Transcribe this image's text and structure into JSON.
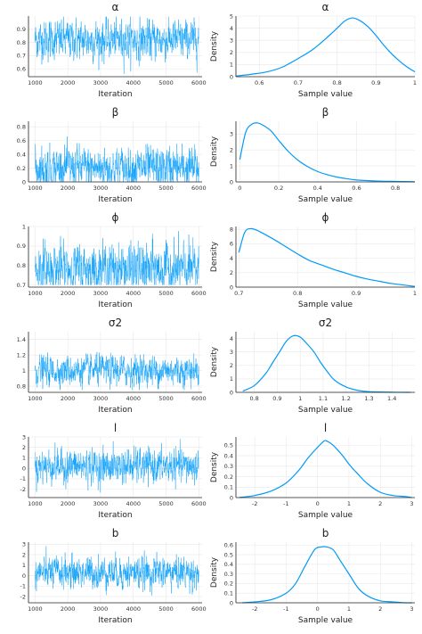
{
  "colors": {
    "series": "#009af9",
    "axis": "#222222",
    "grid": "#e8e8e8"
  },
  "chart_data": [
    {
      "param": "α",
      "trace": {
        "type": "line",
        "title": "α",
        "xlabel": "Iteration",
        "ylabel": "",
        "xlim": [
          800,
          6100
        ],
        "ylim": [
          0.54,
          1.0
        ],
        "xticks": [
          1000,
          2000,
          3000,
          4000,
          5000,
          6000
        ],
        "yticks": [
          0.6,
          0.7,
          0.8,
          0.9
        ],
        "mean": 0.82,
        "spread": 0.07,
        "min": 0.56,
        "max": 0.995
      },
      "density": {
        "type": "line",
        "title": "α",
        "xlabel": "Sample value",
        "ylabel": "Density",
        "xlim": [
          0.54,
          1.0
        ],
        "ylim": [
          0,
          5
        ],
        "xticks": [
          0.6,
          0.7,
          0.8,
          0.9,
          1.0
        ],
        "yticks": [
          0,
          1,
          2,
          3,
          4,
          5
        ],
        "x": [
          0.54,
          0.58,
          0.62,
          0.66,
          0.7,
          0.74,
          0.78,
          0.8,
          0.82,
          0.84,
          0.86,
          0.88,
          0.9,
          0.92,
          0.94,
          0.96,
          0.98,
          1.0
        ],
        "y": [
          0.05,
          0.2,
          0.4,
          0.8,
          1.5,
          2.3,
          3.4,
          4.0,
          4.6,
          4.85,
          4.6,
          4.1,
          3.4,
          2.6,
          1.9,
          1.3,
          0.8,
          0.4
        ]
      }
    },
    {
      "param": "β",
      "trace": {
        "type": "line",
        "title": "β",
        "xlabel": "Iteration",
        "ylabel": "",
        "xlim": [
          800,
          6100
        ],
        "ylim": [
          0,
          0.88
        ],
        "xticks": [
          1000,
          2000,
          3000,
          4000,
          5000,
          6000
        ],
        "yticks": [
          0.0,
          0.2,
          0.4,
          0.6,
          0.8
        ],
        "mean": 0.2,
        "spread": 0.14,
        "min": 0.005,
        "max": 0.85
      },
      "density": {
        "type": "line",
        "title": "β",
        "xlabel": "Sample value",
        "ylabel": "Density",
        "xlim": [
          -0.02,
          0.9
        ],
        "ylim": [
          0,
          3.8
        ],
        "xticks": [
          0.0,
          0.2,
          0.4,
          0.6,
          0.8
        ],
        "yticks": [
          0,
          1,
          2,
          3
        ],
        "x": [
          0.0,
          0.03,
          0.06,
          0.09,
          0.12,
          0.16,
          0.2,
          0.25,
          0.3,
          0.35,
          0.4,
          0.45,
          0.5,
          0.55,
          0.6,
          0.7,
          0.8,
          0.9
        ],
        "y": [
          1.4,
          3.1,
          3.6,
          3.7,
          3.55,
          3.2,
          2.6,
          1.9,
          1.35,
          0.95,
          0.65,
          0.45,
          0.3,
          0.2,
          0.12,
          0.06,
          0.03,
          0.01
        ]
      }
    },
    {
      "param": "ϕ",
      "trace": {
        "type": "line",
        "title": "ϕ",
        "xlabel": "Iteration",
        "ylabel": "",
        "xlim": [
          800,
          6100
        ],
        "ylim": [
          0.69,
          1.0
        ],
        "xticks": [
          1000,
          2000,
          3000,
          4000,
          5000,
          6000
        ],
        "yticks": [
          0.7,
          0.8,
          0.9,
          1.0
        ],
        "mean": 0.78,
        "spread": 0.06,
        "min": 0.702,
        "max": 0.99
      },
      "density": {
        "type": "line",
        "title": "ϕ",
        "xlabel": "Sample value",
        "ylabel": "Density",
        "xlim": [
          0.695,
          1.0
        ],
        "ylim": [
          0,
          8.4
        ],
        "xticks": [
          0.7,
          0.8,
          0.9,
          1.0
        ],
        "yticks": [
          0,
          2,
          4,
          6,
          8
        ],
        "x": [
          0.7,
          0.71,
          0.72,
          0.73,
          0.74,
          0.76,
          0.78,
          0.8,
          0.82,
          0.84,
          0.86,
          0.88,
          0.9,
          0.92,
          0.94,
          0.96,
          0.98,
          1.0
        ],
        "y": [
          4.8,
          7.6,
          8.1,
          7.9,
          7.5,
          6.6,
          5.6,
          4.6,
          3.7,
          3.1,
          2.5,
          2.0,
          1.5,
          1.1,
          0.8,
          0.5,
          0.3,
          0.1
        ]
      }
    },
    {
      "param": "σ2",
      "trace": {
        "type": "line",
        "title": "σ2",
        "xlabel": "Iteration",
        "ylabel": "",
        "xlim": [
          800,
          6100
        ],
        "ylim": [
          0.72,
          1.5
        ],
        "xticks": [
          1000,
          2000,
          3000,
          4000,
          5000,
          6000
        ],
        "yticks": [
          0.8,
          1.0,
          1.2,
          1.4
        ],
        "mean": 1.0,
        "spread": 0.09,
        "min": 0.75,
        "max": 1.45
      },
      "density": {
        "type": "line",
        "title": "σ2",
        "xlabel": "Sample value",
        "ylabel": "Density",
        "xlim": [
          0.72,
          1.5
        ],
        "ylim": [
          0,
          4.5
        ],
        "xticks": [
          0.8,
          0.9,
          1.0,
          1.1,
          1.2,
          1.3,
          1.4
        ],
        "yticks": [
          0,
          1,
          2,
          3,
          4
        ],
        "x": [
          0.75,
          0.8,
          0.85,
          0.88,
          0.91,
          0.94,
          0.97,
          1.0,
          1.03,
          1.06,
          1.09,
          1.12,
          1.15,
          1.2,
          1.25,
          1.3,
          1.4,
          1.48
        ],
        "y": [
          0.1,
          0.5,
          1.4,
          2.2,
          3.0,
          3.8,
          4.2,
          4.1,
          3.6,
          3.0,
          2.2,
          1.5,
          0.9,
          0.4,
          0.15,
          0.05,
          0.01,
          0.0
        ]
      }
    },
    {
      "param": "l",
      "trace": {
        "type": "line",
        "title": "l",
        "xlabel": "Iteration",
        "ylabel": "",
        "xlim": [
          800,
          6100
        ],
        "ylim": [
          -2.8,
          3.0
        ],
        "xticks": [
          1000,
          2000,
          3000,
          4000,
          5000,
          6000
        ],
        "yticks": [
          -2,
          -1,
          0,
          1,
          2,
          3
        ],
        "mean": 0.2,
        "spread": 0.75,
        "min": -2.5,
        "max": 2.8
      },
      "density": {
        "type": "line",
        "title": "l",
        "xlabel": "Sample value",
        "ylabel": "Density",
        "xlim": [
          -2.6,
          3.1
        ],
        "ylim": [
          0,
          0.58
        ],
        "xticks": [
          -2,
          -1,
          0,
          1,
          2,
          3
        ],
        "yticks": [
          0.0,
          0.1,
          0.2,
          0.3,
          0.4,
          0.5
        ],
        "x": [
          -2.5,
          -2.0,
          -1.5,
          -1.0,
          -0.6,
          -0.3,
          0.0,
          0.2,
          0.3,
          0.5,
          0.8,
          1.0,
          1.3,
          1.6,
          2.0,
          2.4,
          2.8,
          3.0
        ],
        "y": [
          0.0,
          0.02,
          0.06,
          0.14,
          0.26,
          0.38,
          0.48,
          0.54,
          0.54,
          0.5,
          0.4,
          0.32,
          0.22,
          0.13,
          0.05,
          0.02,
          0.01,
          0.0
        ]
      }
    },
    {
      "param": "b",
      "trace": {
        "type": "line",
        "title": "b",
        "xlabel": "Iteration",
        "ylabel": "",
        "xlim": [
          800,
          6100
        ],
        "ylim": [
          -2.6,
          3.2
        ],
        "xticks": [
          1000,
          2000,
          3000,
          4000,
          5000,
          6000
        ],
        "yticks": [
          -2,
          -1,
          0,
          1,
          2,
          3
        ],
        "mean": 0.3,
        "spread": 0.7,
        "min": -2.3,
        "max": 2.9
      },
      "density": {
        "type": "line",
        "title": "b",
        "xlabel": "Sample value",
        "ylabel": "Density",
        "xlim": [
          -2.6,
          3.1
        ],
        "ylim": [
          0,
          0.63
        ],
        "xticks": [
          -2,
          -1,
          0,
          1,
          2,
          3
        ],
        "yticks": [
          0.0,
          0.1,
          0.2,
          0.3,
          0.4,
          0.5,
          0.6
        ],
        "x": [
          -2.4,
          -2.0,
          -1.5,
          -1.0,
          -0.7,
          -0.4,
          -0.1,
          0.1,
          0.3,
          0.5,
          0.7,
          1.0,
          1.3,
          1.6,
          2.0,
          2.4,
          2.8,
          3.0
        ],
        "y": [
          0.0,
          0.01,
          0.03,
          0.1,
          0.2,
          0.38,
          0.55,
          0.58,
          0.58,
          0.55,
          0.45,
          0.3,
          0.15,
          0.07,
          0.02,
          0.01,
          0.0,
          0.0
        ]
      }
    }
  ]
}
